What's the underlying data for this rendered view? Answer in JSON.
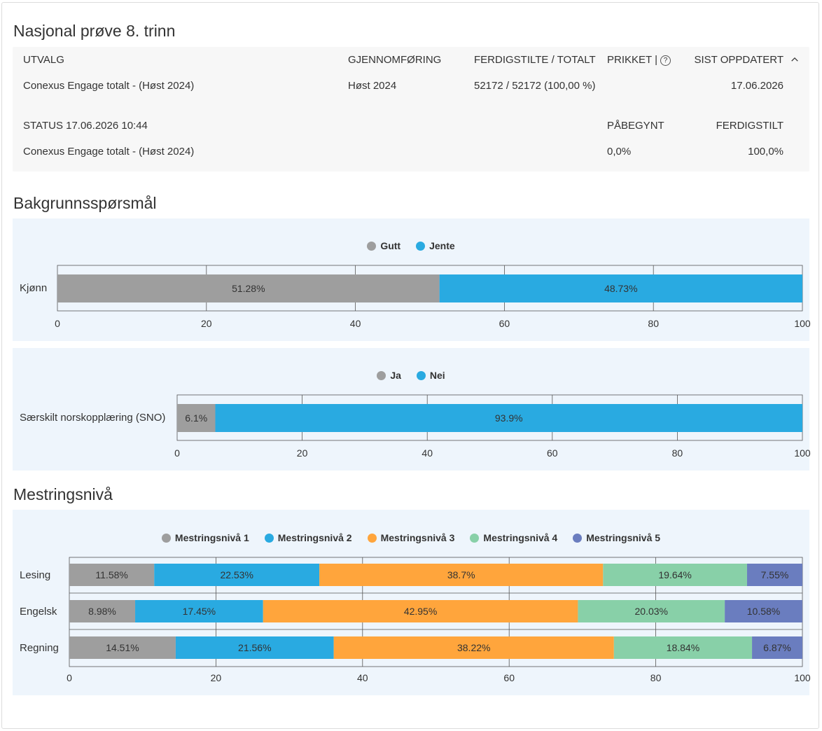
{
  "title": "Nasjonal prøve 8. trinn",
  "info": {
    "headers": {
      "utvalg": "UTVALG",
      "gjennomforing": "GJENNOMFØRING",
      "ferdigstilte": "FERDIGSTILTE / TOTALT",
      "prikket": "PRIKKET |",
      "sist": "SIST OPPDATERT"
    },
    "row1": {
      "utvalg": "Conexus Engage totalt - (Høst 2024)",
      "gjennomforing": "Høst 2024",
      "ferdigstilte": "52172 / 52172 (100,00 %)",
      "sist": "17.06.2026"
    },
    "status": {
      "label": "STATUS 17.06.2026 10:44",
      "pabegynt_label": "PÅBEGYNT",
      "ferdigstilt_label": "FERDIGSTILT",
      "utvalg": "Conexus Engage totalt - (Høst 2024)",
      "pabegynt": "0,0%",
      "ferdigstilt": "100,0%"
    }
  },
  "section_bakgrunn": "Bakgrunnsspørsmål",
  "section_mestring": "Mestringsnivå",
  "colors": {
    "gray": "#9e9e9e",
    "blue": "#29aae1",
    "orange": "#ffa53c",
    "green": "#88d0a8",
    "purple": "#6a7dbf"
  },
  "chart_data": [
    {
      "type": "bar",
      "orientation": "horizontal-stacked",
      "categories": [
        "Kjønn"
      ],
      "series": [
        {
          "name": "Gutt",
          "values": [
            51.28
          ],
          "labels": [
            "51.28%"
          ]
        },
        {
          "name": "Jente",
          "values": [
            48.73
          ],
          "labels": [
            "48.73%"
          ]
        }
      ],
      "xlim": [
        0,
        100
      ],
      "ticks": [
        0,
        20,
        40,
        60,
        80,
        100
      ],
      "legend": "top-center",
      "grid": true
    },
    {
      "type": "bar",
      "orientation": "horizontal-stacked",
      "categories": [
        "Særskilt norskopplæring (SNO)"
      ],
      "series": [
        {
          "name": "Ja",
          "values": [
            6.1
          ],
          "labels": [
            "6.1%"
          ]
        },
        {
          "name": "Nei",
          "values": [
            93.9
          ],
          "labels": [
            "93.9%"
          ]
        }
      ],
      "xlim": [
        0,
        100
      ],
      "ticks": [
        0,
        20,
        40,
        60,
        80,
        100
      ],
      "legend": "top-center",
      "grid": true
    },
    {
      "type": "bar",
      "orientation": "horizontal-stacked",
      "categories": [
        "Lesing",
        "Engelsk",
        "Regning"
      ],
      "series": [
        {
          "name": "Mestringsnivå 1",
          "values": [
            11.58,
            8.98,
            14.51
          ],
          "labels": [
            "11.58%",
            "8.98%",
            "14.51%"
          ]
        },
        {
          "name": "Mestringsnivå 2",
          "values": [
            22.53,
            17.45,
            21.56
          ],
          "labels": [
            "22.53%",
            "17.45%",
            "21.56%"
          ]
        },
        {
          "name": "Mestringsnivå 3",
          "values": [
            38.7,
            42.95,
            38.22
          ],
          "labels": [
            "38.7%",
            "42.95%",
            "38.22%"
          ]
        },
        {
          "name": "Mestringsnivå 4",
          "values": [
            19.64,
            20.03,
            18.84
          ],
          "labels": [
            "19.64%",
            "20.03%",
            "18.84%"
          ]
        },
        {
          "name": "Mestringsnivå 5",
          "values": [
            7.55,
            10.58,
            6.87
          ],
          "labels": [
            "7.55%",
            "10.58%",
            "6.87%"
          ]
        }
      ],
      "xlim": [
        0,
        100
      ],
      "ticks": [
        0,
        20,
        40,
        60,
        80,
        100
      ],
      "legend": "top-center",
      "grid": true
    }
  ]
}
